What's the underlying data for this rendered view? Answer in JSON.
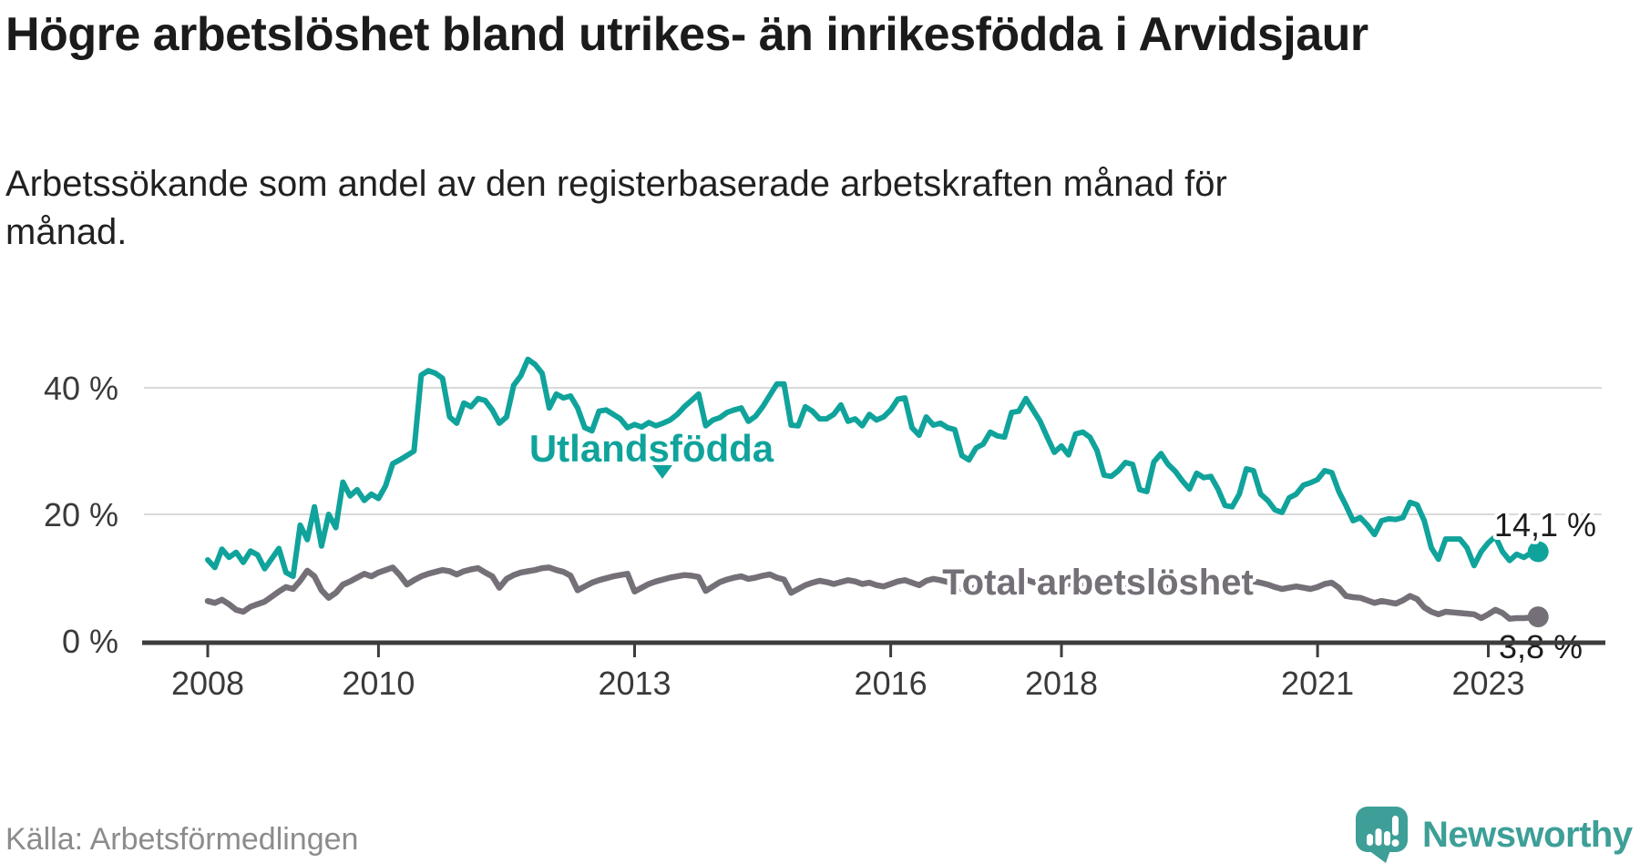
{
  "header": {
    "title": "Högre arbetslöshet bland utrikes- än inrikesfödda i Arvidsjaur",
    "subtitle": "Arbetssökande som andel av den registerbaserade arbetskraften månad för månad."
  },
  "footer": {
    "source": "Källa: Arbetsförmedlingen",
    "brand": "Newsworthy"
  },
  "colors": {
    "foreign_born": "#10a39b",
    "total": "#757077",
    "brand": "#3d9f97",
    "grid": "#d9d9d9",
    "axis": "#3d3d3d",
    "label_text": "#1d1d1d"
  },
  "chart_data": {
    "type": "line",
    "x_unit": "month",
    "x_start": "2008-01",
    "x_end": "2023-08",
    "x_ticks": [
      2008,
      2010,
      2013,
      2016,
      2018,
      2021,
      2023
    ],
    "y_ticks": [
      {
        "value": 0,
        "label": "0 %"
      },
      {
        "value": 20,
        "label": "20 %"
      },
      {
        "value": 40,
        "label": "40 %"
      }
    ],
    "ylim": [
      0,
      45
    ],
    "grid": "horizontal",
    "legend_position": "inline-labels",
    "series": [
      {
        "name": "Utlandsfödda",
        "color": "#10a39b",
        "end_value": 14.1,
        "end_label": "14,1 %",
        "values": [
          12.8,
          11.6,
          14.5,
          13.2,
          14.0,
          12.4,
          14.2,
          13.6,
          11.4,
          13.0,
          14.6,
          10.8,
          10.2,
          18.3,
          16.0,
          21.2,
          15.0,
          20.0,
          17.9,
          25.1,
          22.9,
          23.9,
          22.2,
          23.2,
          22.5,
          24.5,
          28.0,
          28.6,
          29.3,
          30.0,
          42.0,
          42.7,
          42.3,
          41.5,
          35.4,
          34.4,
          37.6,
          37.0,
          38.3,
          38.0,
          36.5,
          34.4,
          35.4,
          40.4,
          41.9,
          44.5,
          43.7,
          42.3,
          36.8,
          39.0,
          38.4,
          38.7,
          36.8,
          33.7,
          33.2,
          36.3,
          36.5,
          35.8,
          35.1,
          33.7,
          34.2,
          33.8,
          34.5,
          34.0,
          34.4,
          34.9,
          35.8,
          37.0,
          38.0,
          39.0,
          34.0,
          34.9,
          35.3,
          36.1,
          36.5,
          36.8,
          34.7,
          35.5,
          37.0,
          38.8,
          40.6,
          40.6,
          34.1,
          34.0,
          37.0,
          36.3,
          35.1,
          35.1,
          35.8,
          37.3,
          34.7,
          35.1,
          34.0,
          35.8,
          34.9,
          35.4,
          36.5,
          38.2,
          38.4,
          33.7,
          32.5,
          35.4,
          34.1,
          34.4,
          33.7,
          33.4,
          29.3,
          28.6,
          30.5,
          31.1,
          33.0,
          32.4,
          32.2,
          36.1,
          36.3,
          38.3,
          36.5,
          34.7,
          32.2,
          29.8,
          30.8,
          29.4,
          32.7,
          33.0,
          32.2,
          30.1,
          26.2,
          26.0,
          26.9,
          28.2,
          27.9,
          23.9,
          23.6,
          28.3,
          29.6,
          27.9,
          26.8,
          25.3,
          24.0,
          26.5,
          25.8,
          26.0,
          24.0,
          21.4,
          21.2,
          23.2,
          27.2,
          26.9,
          23.2,
          22.2,
          20.7,
          20.3,
          22.6,
          23.2,
          24.6,
          25.0,
          25.5,
          26.9,
          26.6,
          23.6,
          21.4,
          19.0,
          19.5,
          18.3,
          16.8,
          19.0,
          19.3,
          19.2,
          19.5,
          21.9,
          21.5,
          19.0,
          14.7,
          12.9,
          16.1,
          16.1,
          16.1,
          14.7,
          11.9,
          14.1,
          15.5,
          16.5,
          14.1,
          12.7,
          13.7,
          13.2,
          13.9,
          14.1
        ]
      },
      {
        "name": "Total arbetslöshet",
        "color": "#757077",
        "end_value": 3.8,
        "end_label": "3,8 %",
        "values": [
          6.3,
          6.0,
          6.5,
          5.8,
          4.9,
          4.6,
          5.4,
          5.8,
          6.2,
          7.0,
          7.8,
          8.5,
          8.2,
          9.5,
          11.1,
          10.2,
          8.0,
          6.8,
          7.6,
          8.9,
          9.4,
          10.0,
          10.6,
          10.2,
          10.8,
          11.2,
          11.6,
          10.4,
          8.9,
          9.6,
          10.2,
          10.6,
          10.9,
          11.2,
          11.0,
          10.5,
          11.0,
          11.3,
          11.5,
          10.8,
          10.2,
          8.4,
          9.8,
          10.4,
          10.8,
          11.0,
          11.2,
          11.5,
          11.6,
          11.2,
          10.9,
          10.3,
          8.0,
          8.6,
          9.2,
          9.6,
          9.9,
          10.2,
          10.4,
          10.6,
          7.8,
          8.4,
          9.0,
          9.4,
          9.7,
          10.0,
          10.2,
          10.4,
          10.3,
          10.1,
          7.9,
          8.6,
          9.3,
          9.7,
          10.0,
          10.2,
          9.8,
          10.0,
          10.3,
          10.5,
          10.0,
          9.7,
          7.6,
          8.2,
          8.8,
          9.2,
          9.5,
          9.3,
          9.0,
          9.3,
          9.6,
          9.4,
          9.0,
          9.2,
          8.8,
          8.6,
          9.0,
          9.4,
          9.6,
          9.2,
          8.8,
          9.5,
          9.8,
          9.6,
          9.3,
          9.0,
          8.2,
          7.8,
          8.6,
          9.0,
          9.4,
          9.2,
          8.9,
          9.6,
          9.9,
          9.7,
          9.3,
          9.0,
          8.6,
          8.2,
          8.8,
          9.0,
          9.3,
          9.1,
          8.8,
          8.5,
          7.9,
          8.1,
          8.4,
          8.7,
          8.5,
          7.9,
          7.7,
          8.2,
          8.6,
          8.4,
          8.1,
          7.9,
          7.7,
          8.0,
          8.2,
          8.4,
          8.1,
          7.8,
          7.9,
          8.3,
          9.0,
          9.4,
          9.2,
          8.9,
          8.5,
          8.2,
          8.4,
          8.6,
          8.4,
          8.2,
          8.5,
          9.0,
          9.2,
          8.4,
          7.1,
          6.9,
          6.8,
          6.4,
          6.0,
          6.3,
          6.1,
          5.9,
          6.4,
          7.1,
          6.6,
          5.3,
          4.6,
          4.2,
          4.6,
          4.5,
          4.4,
          4.3,
          4.2,
          3.6,
          4.2,
          4.9,
          4.4,
          3.5,
          3.6,
          3.6,
          3.7,
          3.8
        ]
      }
    ]
  }
}
